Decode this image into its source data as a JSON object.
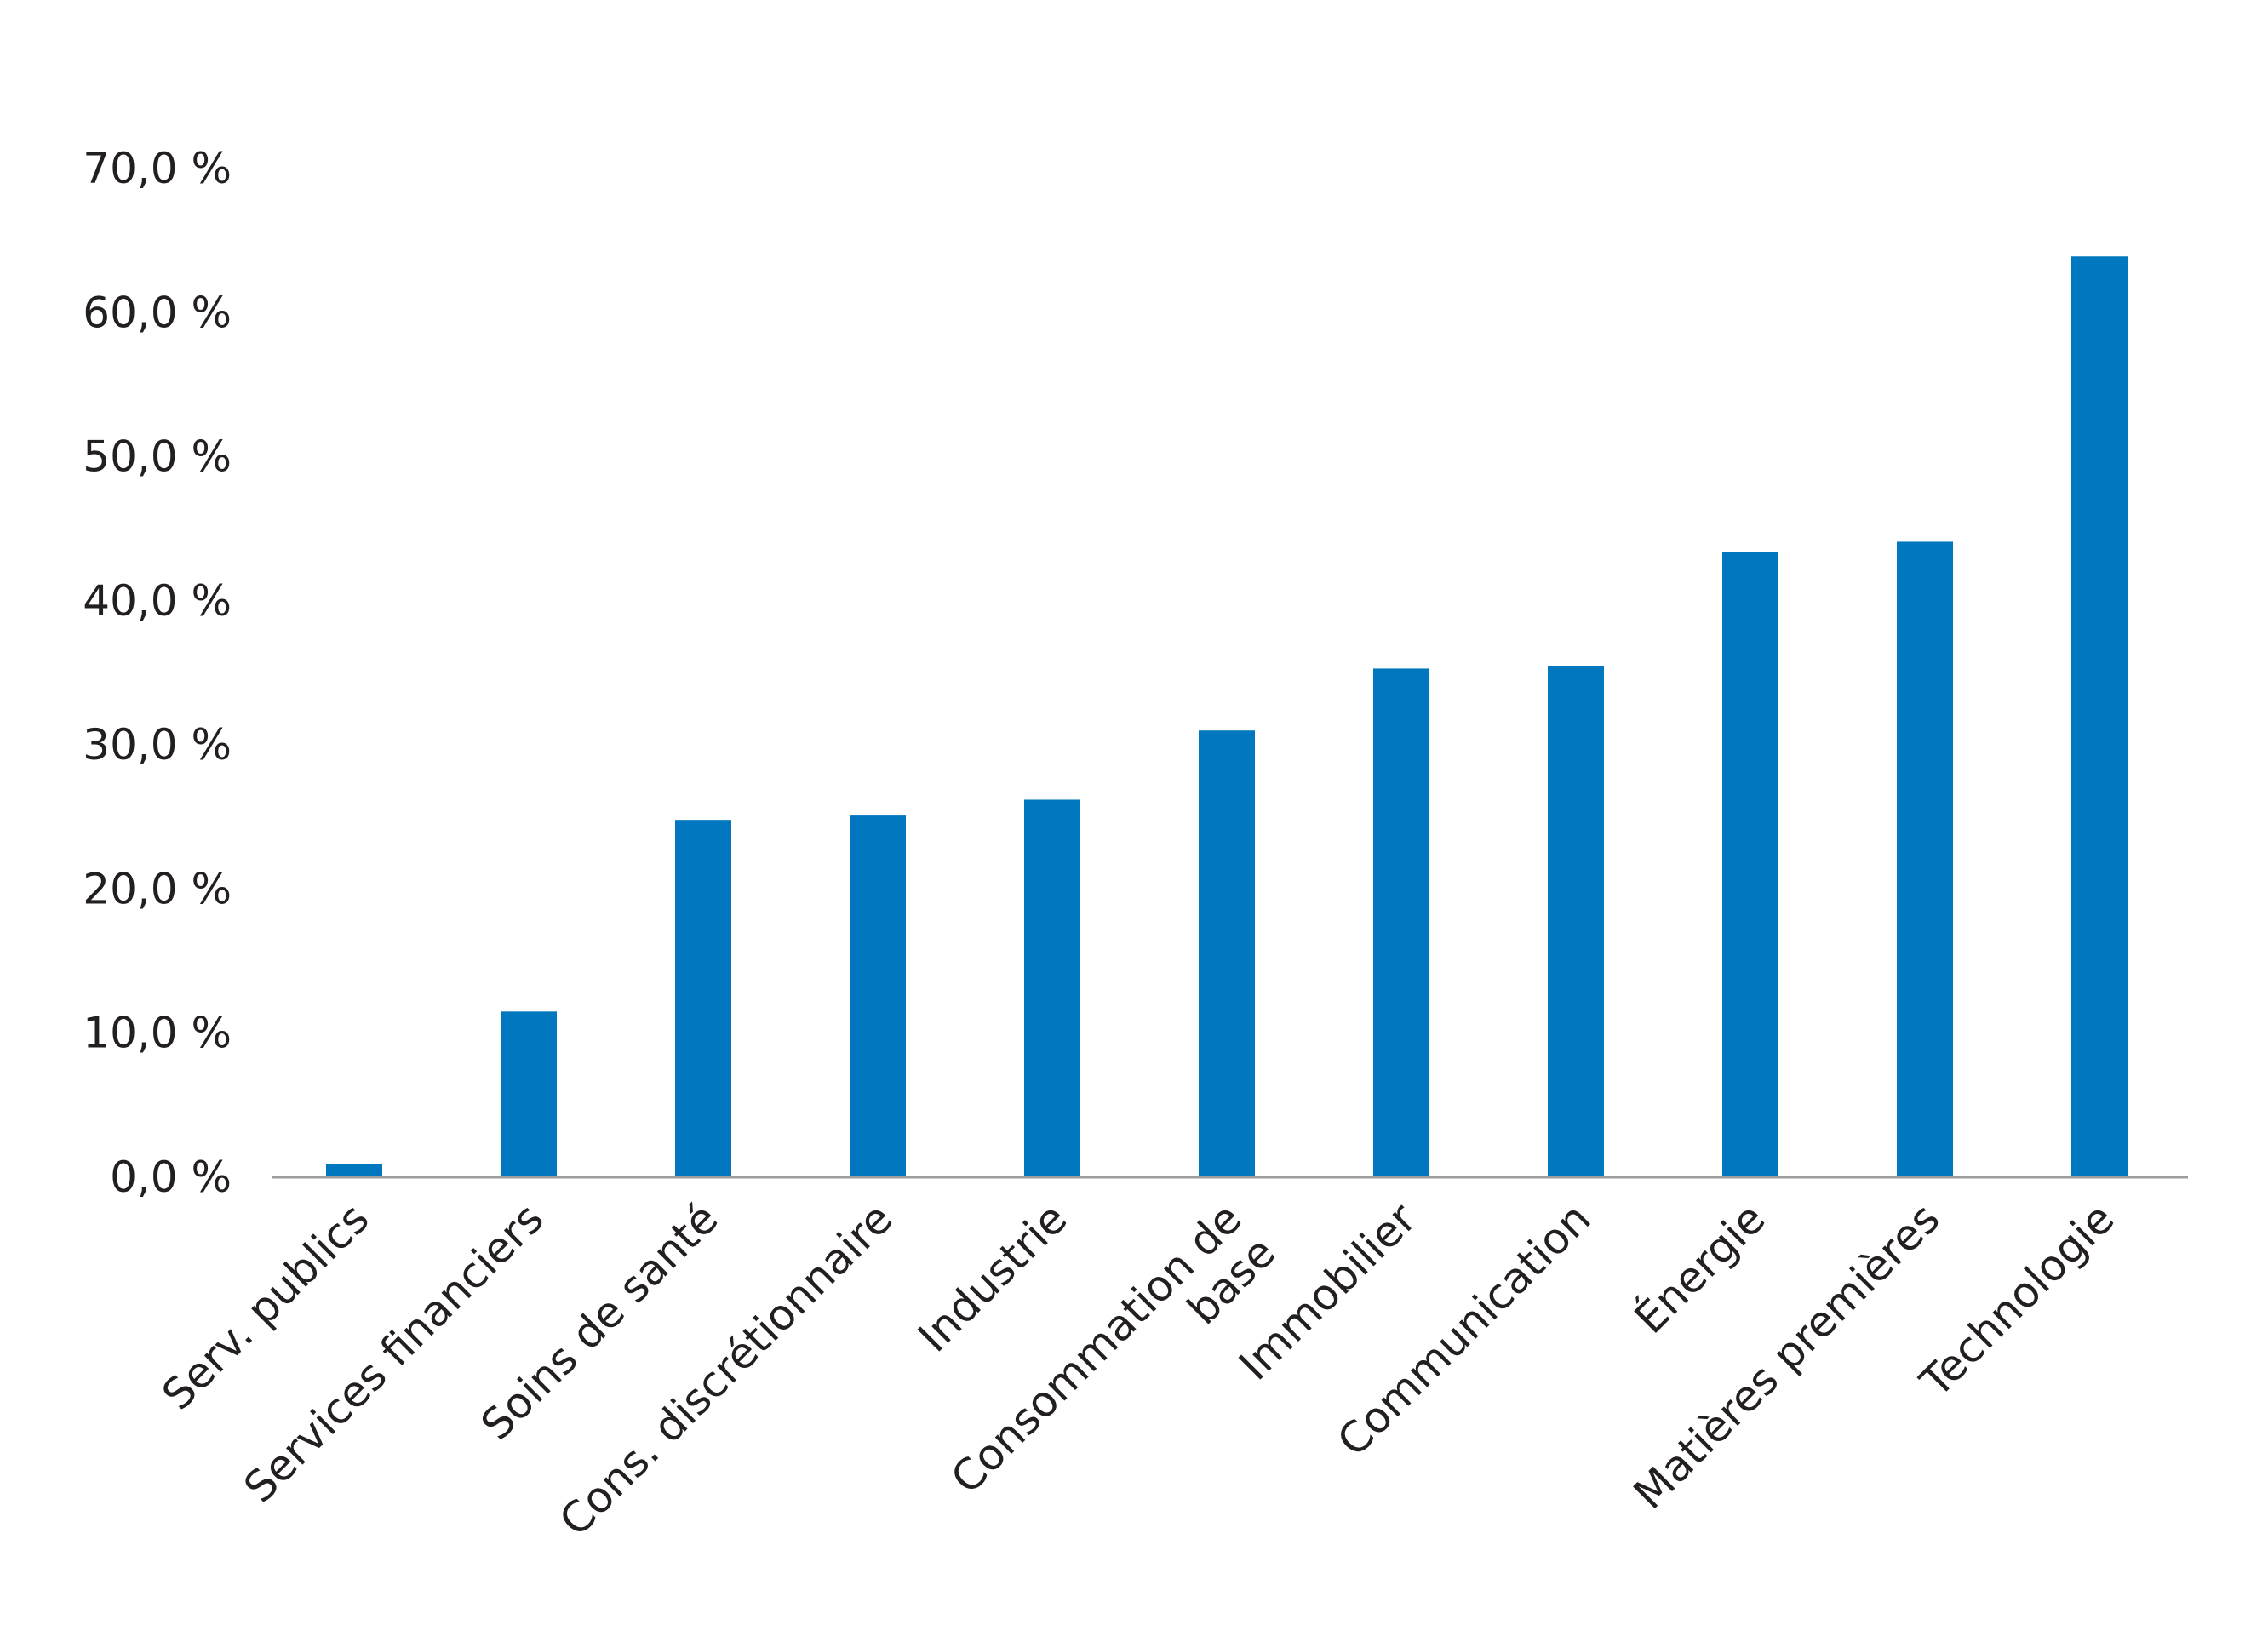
{
  "chart_data": {
    "type": "bar",
    "title": "",
    "xlabel": "",
    "ylabel": "",
    "categories": [
      "Serv. publics",
      "Services financiers",
      "Soins de santé",
      "Cons. discrétionnaire",
      "Industrie",
      "Consommation de base",
      "Immobilier",
      "Communication",
      "Énergie",
      "Matières premières",
      "Technologie"
    ],
    "category_label_lines": [
      [
        "Serv. publics"
      ],
      [
        "Services financiers"
      ],
      [
        "Soins de santé"
      ],
      [
        "Cons. discrétionnaire"
      ],
      [
        "Industrie"
      ],
      [
        "Consommation de",
        "base"
      ],
      [
        "Immobilier"
      ],
      [
        "Communication"
      ],
      [
        "Énergie"
      ],
      [
        "Matières premières"
      ],
      [
        "Technologie"
      ]
    ],
    "values": [
      0.9,
      11.5,
      24.8,
      25.1,
      26.2,
      31.0,
      35.3,
      35.5,
      43.4,
      44.1,
      63.9
    ],
    "ylim": [
      0,
      70
    ],
    "yticks": [
      0,
      10,
      20,
      30,
      40,
      50,
      60,
      70
    ],
    "ytick_labels": [
      "0,0 %",
      "10,0 %",
      "20,0 %",
      "30,0 %",
      "40,0 %",
      "50,0 %",
      "60,0 %",
      "70,0 %"
    ],
    "grid": false,
    "legend": "none",
    "bar_color": "#0077bf",
    "axis_color": "#9d9d9d",
    "text_color": "#231f20"
  }
}
